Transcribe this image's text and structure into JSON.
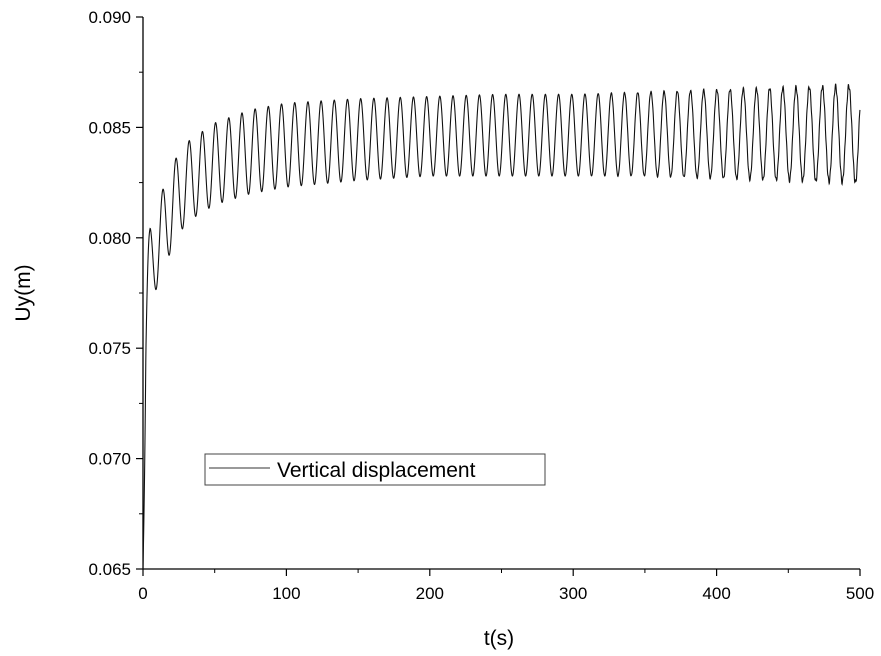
{
  "chart_data": {
    "type": "line",
    "title": "",
    "xlabel": "t(s)",
    "ylabel": "Uy(m)",
    "xlim": [
      0,
      500
    ],
    "ylim": [
      0.065,
      0.09
    ],
    "xticks": [
      0,
      100,
      200,
      300,
      400,
      500
    ],
    "xtick_labels": [
      "0",
      "100",
      "200",
      "300",
      "400",
      "500"
    ],
    "yticks": [
      0.065,
      0.07,
      0.075,
      0.08,
      0.085,
      0.09
    ],
    "ytick_labels": [
      "0.065",
      "0.070",
      "0.075",
      "0.080",
      "0.085",
      "0.090"
    ],
    "grid": false,
    "legend_position": "lower-left",
    "series": [
      {
        "name": "Vertical displacement",
        "color": "#000000",
        "description_points": {
          "x": [
            0,
            2,
            5,
            10,
            20,
            30,
            50,
            75,
            100,
            150,
            200,
            250,
            300,
            350,
            400,
            450,
            500
          ],
          "y_upper": [
            0.065,
            0.079,
            0.0805,
            0.0815,
            0.0833,
            0.0843,
            0.0852,
            0.0858,
            0.0861,
            0.0863,
            0.0864,
            0.0865,
            0.0865,
            0.0866,
            0.0867,
            0.0868,
            0.0869
          ],
          "y_lower": [
            0.065,
            0.072,
            0.077,
            0.0778,
            0.0795,
            0.0807,
            0.0815,
            0.082,
            0.0823,
            0.0826,
            0.0828,
            0.0828,
            0.0828,
            0.0828,
            0.0827,
            0.0826,
            0.0825
          ]
        },
        "period": 9.2
      }
    ]
  }
}
